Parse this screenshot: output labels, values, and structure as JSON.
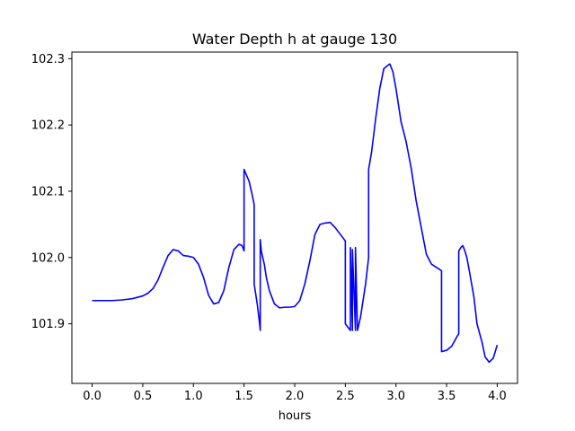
{
  "chart_data": {
    "type": "line",
    "title": "Water Depth h at gauge 130",
    "xlabel": "hours",
    "ylabel": "",
    "xlim": [
      -0.2,
      4.2
    ],
    "ylim": [
      101.81,
      102.31
    ],
    "xticks": [
      0.0,
      0.5,
      1.0,
      1.5,
      2.0,
      2.5,
      3.0,
      3.5,
      4.0
    ],
    "xtick_labels": [
      "0.0",
      "0.5",
      "1.0",
      "1.5",
      "2.0",
      "2.5",
      "3.0",
      "3.5",
      "4.0"
    ],
    "yticks": [
      101.9,
      102.0,
      102.1,
      102.2,
      102.3
    ],
    "ytick_labels": [
      "101.9",
      "102.0",
      "102.1",
      "102.2",
      "102.3"
    ],
    "grid": false,
    "line_color": "#0000ff",
    "series": [
      {
        "x": [
          0.0,
          0.1,
          0.2,
          0.3,
          0.4,
          0.5,
          0.55,
          0.6,
          0.65,
          0.7,
          0.75,
          0.8,
          0.85,
          0.9,
          0.95,
          1.0,
          1.05,
          1.1,
          1.15,
          1.2,
          1.25,
          1.3,
          1.35,
          1.4,
          1.45,
          1.48,
          1.5,
          1.5,
          1.55,
          1.58,
          1.6,
          1.6,
          1.63,
          1.65,
          1.66,
          1.66,
          1.67,
          1.7,
          1.72,
          1.75,
          1.8,
          1.85,
          1.9,
          1.95,
          2.0,
          2.05,
          2.1,
          2.15,
          2.2,
          2.25,
          2.3,
          2.35,
          2.4,
          2.45,
          2.5,
          2.5,
          2.55,
          2.55,
          2.57,
          2.57,
          2.6,
          2.6,
          2.62,
          2.65,
          2.7,
          2.73,
          2.73,
          2.76,
          2.8,
          2.84,
          2.88,
          2.92,
          2.94,
          2.97,
          3.0,
          3.05,
          3.1,
          3.15,
          3.2,
          3.25,
          3.3,
          3.35,
          3.4,
          3.45,
          3.45,
          3.5,
          3.55,
          3.6,
          3.62,
          3.62,
          3.64,
          3.66,
          3.68,
          3.7,
          3.73,
          3.77,
          3.8,
          3.85,
          3.88,
          3.92,
          3.96,
          4.0
        ],
        "y": [
          101.935,
          101.935,
          101.935,
          101.936,
          101.938,
          101.942,
          101.946,
          101.953,
          101.966,
          101.985,
          102.003,
          102.012,
          102.01,
          102.003,
          102.002,
          102.0,
          101.99,
          101.97,
          101.943,
          101.93,
          101.932,
          101.95,
          101.985,
          102.012,
          102.02,
          102.018,
          102.01,
          102.133,
          102.115,
          102.095,
          102.08,
          101.96,
          101.93,
          101.905,
          101.89,
          102.027,
          102.01,
          101.99,
          101.97,
          101.95,
          101.93,
          101.924,
          101.925,
          101.925,
          101.926,
          101.935,
          101.96,
          101.995,
          102.035,
          102.05,
          102.052,
          102.053,
          102.045,
          102.035,
          102.025,
          101.9,
          101.89,
          102.015,
          101.89,
          102.012,
          101.89,
          102.015,
          101.89,
          101.91,
          101.96,
          102.0,
          102.133,
          102.16,
          102.21,
          102.255,
          102.285,
          102.29,
          102.292,
          102.28,
          102.255,
          102.205,
          102.175,
          102.135,
          102.085,
          102.045,
          102.005,
          101.99,
          101.985,
          101.98,
          101.858,
          101.86,
          101.866,
          101.88,
          101.885,
          102.01,
          102.015,
          102.018,
          102.01,
          102.0,
          101.975,
          101.94,
          101.9,
          101.872,
          101.85,
          101.842,
          101.848,
          101.868
        ]
      }
    ]
  }
}
